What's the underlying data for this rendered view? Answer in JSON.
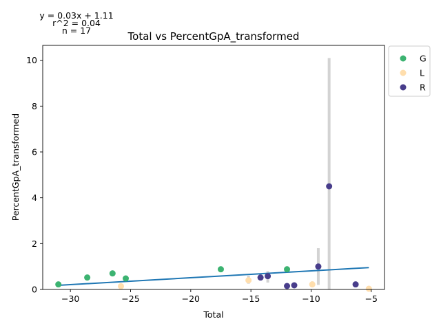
{
  "chart_data": {
    "type": "scatter",
    "title": "Total vs PercentGpA_transformed",
    "xlabel": "Total",
    "ylabel": "PercentGpA_transformed",
    "xlim": [
      -32.3,
      -3.9
    ],
    "ylim": [
      0,
      10.65
    ],
    "xticks": [
      -30,
      -25,
      -20,
      -15,
      -10,
      -5
    ],
    "xtick_labels": [
      "−30",
      "−25",
      "−20",
      "−15",
      "−10",
      "−5"
    ],
    "yticks": [
      0,
      2,
      4,
      6,
      8,
      10
    ],
    "ytick_labels": [
      "0",
      "2",
      "4",
      "6",
      "8",
      "10"
    ],
    "grid": false,
    "legend_position": "outside-top-right",
    "annotation": {
      "equation": "y = 0.03x + 1.11",
      "r2": "r^2 = 0.04",
      "n": "n = 17"
    },
    "regression": {
      "slope": 0.03,
      "intercept": 1.11,
      "x_range": [
        -31,
        -5.2
      ],
      "color": "#1f77b4"
    },
    "errorbar_color": "#d3d3d3",
    "series": [
      {
        "name": "G",
        "color": "#3cb371",
        "points": [
          {
            "x": -31.0,
            "y": 0.22
          },
          {
            "x": -28.6,
            "y": 0.52
          },
          {
            "x": -26.5,
            "y": 0.7
          },
          {
            "x": -25.4,
            "y": 0.48
          },
          {
            "x": -17.5,
            "y": 0.88
          },
          {
            "x": -12.0,
            "y": 0.88
          }
        ]
      },
      {
        "name": "L",
        "color": "#ffdead",
        "points": [
          {
            "x": -25.8,
            "y": 0.14
          },
          {
            "x": -15.2,
            "y": 0.4,
            "err": [
              0.25,
              0.6
            ]
          },
          {
            "x": -9.9,
            "y": 0.22,
            "err": [
              0.15,
              0.35
            ]
          },
          {
            "x": -5.2,
            "y": 0.03
          }
        ]
      },
      {
        "name": "R",
        "color": "#483d8b",
        "points": [
          {
            "x": -14.2,
            "y": 0.52
          },
          {
            "x": -13.6,
            "y": 0.58,
            "err": [
              0.3,
              0.8
            ]
          },
          {
            "x": -12.0,
            "y": 0.15
          },
          {
            "x": -11.4,
            "y": 0.18
          },
          {
            "x": -9.4,
            "y": 1.0,
            "err": [
              0.2,
              1.8
            ]
          },
          {
            "x": -8.5,
            "y": 4.5,
            "err": [
              0.0,
              10.1
            ]
          },
          {
            "x": -6.3,
            "y": 0.22
          }
        ]
      }
    ]
  }
}
